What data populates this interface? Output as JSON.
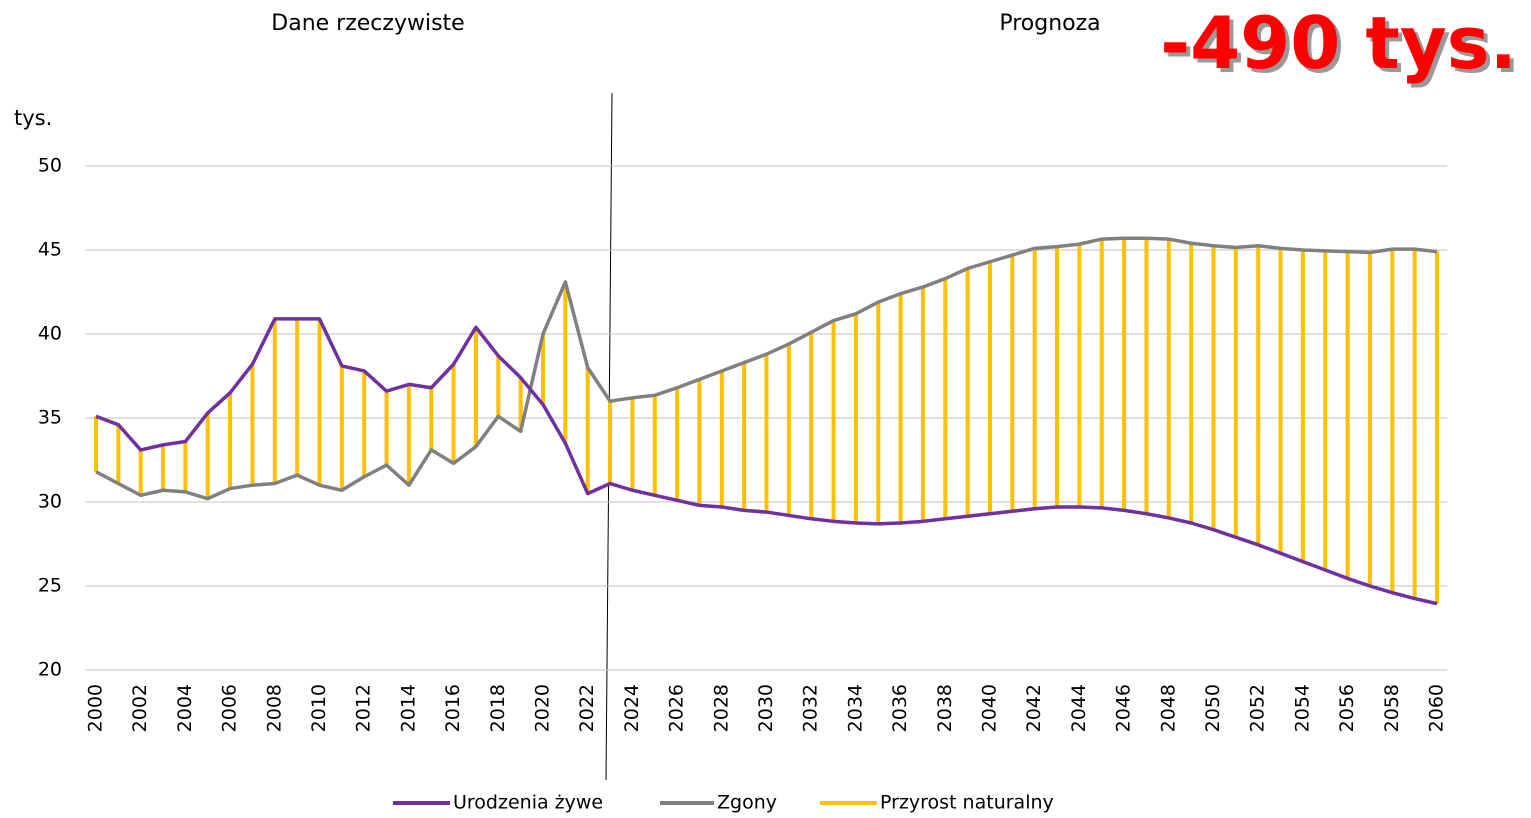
{
  "chart_data": {
    "type": "line",
    "annotations": [
      "Dane rzeczywiste",
      "Prognoza",
      "-490 tys."
    ],
    "ylabel": "tys.",
    "x": [
      2000,
      2001,
      2002,
      2003,
      2004,
      2005,
      2006,
      2007,
      2008,
      2009,
      2010,
      2011,
      2012,
      2013,
      2014,
      2015,
      2016,
      2017,
      2018,
      2019,
      2020,
      2021,
      2022,
      2023,
      2024,
      2025,
      2026,
      2027,
      2028,
      2029,
      2030,
      2031,
      2032,
      2033,
      2034,
      2035,
      2036,
      2037,
      2038,
      2039,
      2040,
      2041,
      2042,
      2043,
      2044,
      2045,
      2046,
      2047,
      2048,
      2049,
      2050,
      2051,
      2052,
      2053,
      2054,
      2055,
      2056,
      2057,
      2058,
      2059,
      2060
    ],
    "xlim": [
      2000,
      2060
    ],
    "xticks": [
      2000,
      2002,
      2004,
      2006,
      2008,
      2010,
      2012,
      2014,
      2016,
      2018,
      2020,
      2022,
      2024,
      2026,
      2028,
      2030,
      2032,
      2034,
      2036,
      2038,
      2040,
      2042,
      2044,
      2046,
      2048,
      2050,
      2052,
      2054,
      2056,
      2058,
      2060
    ],
    "ylim": [
      20,
      50
    ],
    "yticks": [
      20,
      25,
      30,
      35,
      40,
      45,
      50
    ],
    "grid": true,
    "legend": "bottom",
    "series": [
      {
        "name": "Urodzenia żywe",
        "color": "#7030a0",
        "values": [
          35.1,
          34.6,
          33.1,
          33.4,
          33.6,
          35.3,
          36.5,
          38.2,
          40.9,
          40.9,
          40.9,
          38.1,
          37.8,
          36.6,
          37.0,
          36.8,
          38.2,
          40.4,
          38.7,
          37.4,
          35.8,
          33.5,
          30.5,
          31.1,
          30.7,
          30.4,
          30.1,
          29.8,
          29.7,
          29.5,
          29.4,
          29.2,
          29.0,
          28.85,
          28.75,
          28.7,
          28.75,
          28.85,
          29.0,
          29.15,
          29.3,
          29.45,
          29.6,
          29.7,
          29.7,
          29.65,
          29.5,
          29.3,
          29.05,
          28.75,
          28.35,
          27.9,
          27.45,
          26.95,
          26.45,
          25.95,
          25.45,
          25.0,
          24.6,
          24.25,
          23.95
        ]
      },
      {
        "name": "Zgony",
        "color": "#808080",
        "values": [
          31.8,
          31.1,
          30.4,
          30.7,
          30.6,
          30.2,
          30.8,
          31.0,
          31.1,
          31.6,
          31.0,
          30.7,
          31.5,
          32.2,
          31.0,
          33.1,
          32.3,
          33.3,
          35.1,
          34.2,
          40.0,
          43.1,
          38.0,
          36.0,
          36.2,
          36.35,
          36.8,
          37.3,
          37.8,
          38.3,
          38.8,
          39.4,
          40.1,
          40.8,
          41.2,
          41.9,
          42.4,
          42.8,
          43.3,
          43.9,
          44.3,
          44.7,
          45.1,
          45.2,
          45.35,
          45.65,
          45.7,
          45.7,
          45.65,
          45.4,
          45.25,
          45.15,
          45.25,
          45.1,
          45.0,
          44.95,
          44.9,
          44.85,
          45.05,
          45.05,
          44.9
        ]
      },
      {
        "name": "Przyrost naturalny",
        "color": "#ffc000"
      }
    ]
  }
}
